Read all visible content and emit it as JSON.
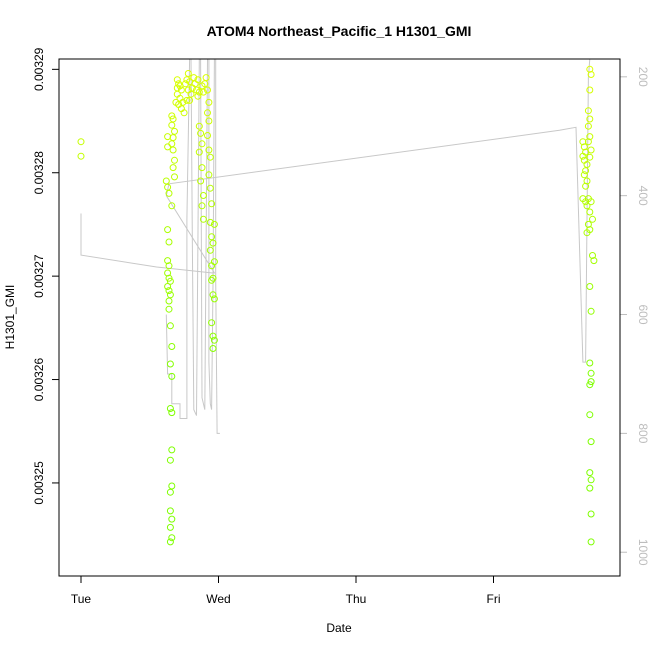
{
  "chart_data": {
    "type": "scatter",
    "title": "ATOM4 Northeast_Pacific_1 H1301_GMI",
    "xlabel": "Date",
    "ylabel": "H1301_GMI",
    "x_ticks": [
      {
        "label": "Tue",
        "value": 0
      },
      {
        "label": "Wed",
        "value": 1
      },
      {
        "label": "Thu",
        "value": 2
      },
      {
        "label": "Fri",
        "value": 3
      }
    ],
    "xlim": [
      -0.16,
      3.92
    ],
    "y_ticks": [
      {
        "label": "0.00325",
        "value": 0.00325
      },
      {
        "label": "0.00326",
        "value": 0.00326
      },
      {
        "label": "0.00327",
        "value": 0.00327
      },
      {
        "label": "0.00328",
        "value": 0.00328
      },
      {
        "label": "0.00329",
        "value": 0.00329
      }
    ],
    "ylim": [
      0.003241,
      0.003291
    ],
    "y2_ticks": [
      {
        "label": "200",
        "value": 200
      },
      {
        "label": "400",
        "value": 400
      },
      {
        "label": "600",
        "value": 600
      },
      {
        "label": "800",
        "value": 800
      },
      {
        "label": "1000",
        "value": 1000
      }
    ],
    "y2lim": [
      1040,
      170
    ],
    "series": [
      {
        "style": "points",
        "color_low": "#7fff00",
        "color_high": "#dcff00",
        "points": [
          [
            0,
            0.003283
          ],
          [
            0,
            0.0032816
          ],
          [
            0.63,
            0.0032835
          ],
          [
            0.63,
            0.0032825
          ],
          [
            0.62,
            0.0032792
          ],
          [
            0.63,
            0.0032786
          ],
          [
            0.64,
            0.003278
          ],
          [
            0.66,
            0.0032768
          ],
          [
            0.63,
            0.0032745
          ],
          [
            0.64,
            0.0032733
          ],
          [
            0.63,
            0.0032715
          ],
          [
            0.64,
            0.003271
          ],
          [
            0.63,
            0.0032703
          ],
          [
            0.64,
            0.0032698
          ],
          [
            0.65,
            0.0032695
          ],
          [
            0.63,
            0.003269
          ],
          [
            0.64,
            0.0032686
          ],
          [
            0.65,
            0.0032682
          ],
          [
            0.64,
            0.0032676
          ],
          [
            0.64,
            0.0032668
          ],
          [
            0.65,
            0.0032652
          ],
          [
            0.66,
            0.0032632
          ],
          [
            0.65,
            0.0032615
          ],
          [
            0.66,
            0.0032603
          ],
          [
            0.65,
            0.0032572
          ],
          [
            0.66,
            0.0032568
          ],
          [
            0.66,
            0.0032532
          ],
          [
            0.65,
            0.0032522
          ],
          [
            0.66,
            0.0032497
          ],
          [
            0.65,
            0.0032491
          ],
          [
            0.65,
            0.0032473
          ],
          [
            0.66,
            0.0032465
          ],
          [
            0.65,
            0.0032457
          ],
          [
            0.66,
            0.0032447
          ],
          [
            0.65,
            0.0032443
          ],
          [
            0.66,
            0.0032855
          ],
          [
            0.67,
            0.0032852
          ],
          [
            0.66,
            0.0032846
          ],
          [
            0.68,
            0.003284
          ],
          [
            0.67,
            0.0032834
          ],
          [
            0.66,
            0.0032828
          ],
          [
            0.67,
            0.0032822
          ],
          [
            0.68,
            0.0032812
          ],
          [
            0.67,
            0.0032805
          ],
          [
            0.68,
            0.0032796
          ],
          [
            0.7,
            0.003289
          ],
          [
            0.71,
            0.0032886
          ],
          [
            0.72,
            0.0032884
          ],
          [
            0.73,
            0.003288
          ],
          [
            0.7,
            0.0032876
          ],
          [
            0.72,
            0.0032872
          ],
          [
            0.74,
            0.0032868
          ],
          [
            0.71,
            0.0032866
          ],
          [
            0.73,
            0.0032862
          ],
          [
            0.75,
            0.0032858
          ],
          [
            0.69,
            0.0032868
          ],
          [
            0.7,
            0.0032882
          ],
          [
            0.76,
            0.0032886
          ],
          [
            0.77,
            0.003289
          ],
          [
            0.78,
            0.0032896
          ],
          [
            0.79,
            0.0032888
          ],
          [
            0.78,
            0.003288
          ],
          [
            0.8,
            0.0032876
          ],
          [
            0.79,
            0.003287
          ],
          [
            0.77,
            0.003287
          ],
          [
            0.81,
            0.0032882
          ],
          [
            0.82,
            0.0032892
          ],
          [
            0.83,
            0.0032886
          ],
          [
            0.84,
            0.003288
          ],
          [
            0.85,
            0.0032874
          ],
          [
            0.86,
            0.0032878
          ],
          [
            0.85,
            0.003289
          ],
          [
            0.88,
            0.0032884
          ],
          [
            0.89,
            0.0032878
          ],
          [
            0.9,
            0.0032886
          ],
          [
            0.91,
            0.0032892
          ],
          [
            0.92,
            0.003288
          ],
          [
            0.93,
            0.0032868
          ],
          [
            0.86,
            0.0032845
          ],
          [
            0.87,
            0.0032838
          ],
          [
            0.88,
            0.0032828
          ],
          [
            0.86,
            0.003282
          ],
          [
            0.88,
            0.0032805
          ],
          [
            0.87,
            0.0032792
          ],
          [
            0.89,
            0.0032778
          ],
          [
            0.88,
            0.0032768
          ],
          [
            0.89,
            0.0032755
          ],
          [
            0.92,
            0.0032858
          ],
          [
            0.93,
            0.003285
          ],
          [
            0.92,
            0.0032836
          ],
          [
            0.93,
            0.0032822
          ],
          [
            0.94,
            0.0032815
          ],
          [
            0.93,
            0.0032798
          ],
          [
            0.94,
            0.0032785
          ],
          [
            0.95,
            0.003277
          ],
          [
            0.94,
            0.0032752
          ],
          [
            0.95,
            0.0032738
          ],
          [
            0.94,
            0.0032725
          ],
          [
            0.95,
            0.003271
          ],
          [
            0.95,
            0.0032696
          ],
          [
            0.96,
            0.0032682
          ],
          [
            0.97,
            0.003275
          ],
          [
            0.96,
            0.0032732
          ],
          [
            0.97,
            0.0032714
          ],
          [
            0.96,
            0.0032698
          ],
          [
            0.97,
            0.0032678
          ],
          [
            0.95,
            0.0032655
          ],
          [
            0.96,
            0.0032642
          ],
          [
            0.97,
            0.0032638
          ],
          [
            0.96,
            0.003263
          ],
          [
            3.65,
            0.003283
          ],
          [
            3.66,
            0.0032825
          ],
          [
            3.67,
            0.003282
          ],
          [
            3.65,
            0.0032816
          ],
          [
            3.66,
            0.0032812
          ],
          [
            3.68,
            0.0032808
          ],
          [
            3.67,
            0.0032802
          ],
          [
            3.66,
            0.0032798
          ],
          [
            3.68,
            0.0032792
          ],
          [
            3.67,
            0.0032787
          ],
          [
            3.69,
            0.003286
          ],
          [
            3.7,
            0.0032852
          ],
          [
            3.69,
            0.0032845
          ],
          [
            3.7,
            0.0032835
          ],
          [
            3.69,
            0.003283
          ],
          [
            3.71,
            0.0032822
          ],
          [
            3.7,
            0.0032815
          ],
          [
            3.65,
            0.0032775
          ],
          [
            3.67,
            0.0032772
          ],
          [
            3.69,
            0.0032775
          ],
          [
            3.71,
            0.0032772
          ],
          [
            3.68,
            0.0032768
          ],
          [
            3.7,
            0.0032762
          ],
          [
            3.72,
            0.0032755
          ],
          [
            3.69,
            0.003275
          ],
          [
            3.7,
            0.0032745
          ],
          [
            3.68,
            0.0032742
          ],
          [
            3.7,
            0.003269
          ],
          [
            3.71,
            0.0032666
          ],
          [
            3.7,
            0.0032616
          ],
          [
            3.71,
            0.0032606
          ],
          [
            3.7,
            0.0032595
          ],
          [
            3.71,
            0.0032598
          ],
          [
            3.7,
            0.0032566
          ],
          [
            3.72,
            0.003272
          ],
          [
            3.73,
            0.0032715
          ],
          [
            3.71,
            0.003254
          ],
          [
            3.7,
            0.003251
          ],
          [
            3.71,
            0.0032503
          ],
          [
            3.7,
            0.0032495
          ],
          [
            3.71,
            0.003247
          ],
          [
            3.71,
            0.0032443
          ],
          [
            3.7,
            0.00329
          ],
          [
            3.71,
            0.0032895
          ],
          [
            3.7,
            0.003288
          ]
        ]
      },
      {
        "style": "line",
        "color": "#c8c8c8",
        "y_axis": "right",
        "points": [
          [
            0,
            430
          ],
          [
            0,
            500
          ],
          [
            0.55,
            520
          ],
          [
            0.95,
            530
          ],
          [
            0.97,
            530
          ],
          [
            0.62,
            400
          ],
          [
            0.64,
            380
          ],
          [
            3.48,
            290
          ],
          [
            3.6,
            285
          ],
          [
            3.65,
            680
          ],
          [
            3.67,
            680
          ],
          [
            3.69,
            200
          ],
          [
            3.7,
            170
          ],
          [
            3.71,
            170
          ],
          [
            3.72,
            170
          ]
        ]
      },
      {
        "style": "line",
        "color": "#c8c8c8",
        "y_axis": "right",
        "points": [
          [
            0.62,
            600
          ],
          [
            0.63,
            700
          ],
          [
            0.66,
            700
          ],
          [
            0.66,
            750
          ],
          [
            0.72,
            750
          ],
          [
            0.72,
            775
          ],
          [
            0.77,
            775
          ],
          [
            0.77,
            440
          ],
          [
            0.79,
            170
          ],
          [
            0.8,
            170
          ],
          [
            0.81,
            490
          ],
          [
            0.82,
            760
          ],
          [
            0.84,
            770
          ],
          [
            0.85,
            480
          ],
          [
            0.86,
            170
          ],
          [
            0.87,
            170
          ],
          [
            0.88,
            740
          ],
          [
            0.9,
            760
          ],
          [
            0.91,
            480
          ],
          [
            0.92,
            170
          ],
          [
            0.93,
            170
          ],
          [
            0.93,
            680
          ],
          [
            0.94,
            750
          ],
          [
            0.95,
            760
          ],
          [
            0.96,
            550
          ],
          [
            0.97,
            170
          ],
          [
            0.98,
            170
          ],
          [
            0.98,
            540
          ],
          [
            0.99,
            800
          ],
          [
            1.0,
            800
          ],
          [
            1.01,
            800
          ]
        ]
      }
    ]
  }
}
